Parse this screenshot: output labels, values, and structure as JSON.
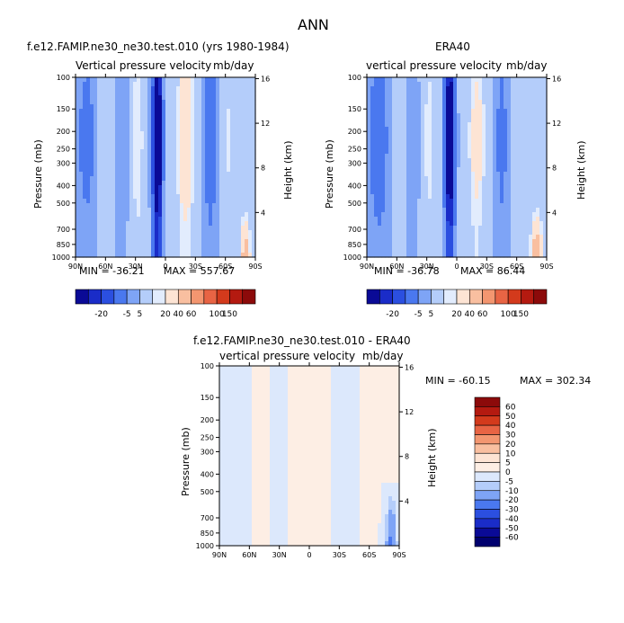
{
  "figure": {
    "title": "ANN"
  },
  "panels": {
    "model": {
      "title": "f.e12.FAMIP.ne30_ne30.test.010 (yrs 1980-1984)",
      "subtitle_left": "Vertical pressure velocity",
      "subtitle_right": "mb/day",
      "min_text": "MIN = -36.21",
      "max_text": "MAX = 557.67"
    },
    "obs": {
      "title": "ERA40",
      "subtitle_left": "vertical pressure velocity",
      "subtitle_right": "mb/day",
      "min_text": "MIN = -36.78",
      "max_text": "MAX = 86.44"
    },
    "diff": {
      "title": "f.e12.FAMIP.ne30_ne30.test.010 - ERA40",
      "subtitle_left": "vertical pressure velocity",
      "subtitle_right": "mb/day",
      "min_text": "MIN = -60.15",
      "max_text": "MAX = 302.34"
    }
  },
  "axes": {
    "ylabel": "Pressure (mb)",
    "ylabel_right": "Height (km)",
    "pressure_ticks": [
      "100",
      "150",
      "200",
      "250",
      "300",
      "400",
      "500",
      "700",
      "850",
      "1000"
    ],
    "height_ticks": [
      "16",
      "12",
      "8",
      "4"
    ],
    "lat_ticks": [
      "90N",
      "60N",
      "30N",
      "0",
      "30S",
      "60S",
      "90S"
    ]
  },
  "colorbars": {
    "main_labels": [
      "-20",
      "-5",
      "5",
      "20",
      "40",
      "60",
      "100",
      "150"
    ],
    "main_colors": [
      "#0a0a96",
      "#1a2cc8",
      "#2b4fe0",
      "#4a78ef",
      "#7ea4f6",
      "#b4cdfa",
      "#e2ecfd",
      "#fde4d4",
      "#f9bfa0",
      "#f39670",
      "#e86444",
      "#d33a1c",
      "#b41a10",
      "#8c0a0a"
    ],
    "diff_labels": [
      "60",
      "50",
      "40",
      "30",
      "20",
      "10",
      "5",
      "0",
      "-5",
      "-10",
      "-20",
      "-30",
      "-40",
      "-50",
      "-60"
    ],
    "diff_colors": [
      "#8c0a0a",
      "#b41a10",
      "#d33a1c",
      "#e86444",
      "#f39670",
      "#f9bfa0",
      "#fde4d4",
      "#fdeee4",
      "#dce8fc",
      "#b4cdfa",
      "#7ea4f6",
      "#4a78ef",
      "#2b4fe0",
      "#1a2cc8",
      "#0a0a96",
      "#00006e"
    ]
  },
  "chart_data": [
    {
      "type": "heatmap",
      "title": "f.e12.FAMIP.ne30_ne30.test.010 (yrs 1980-1984)",
      "subtitle": "Vertical pressure velocity (mb/day)",
      "xlabel": "",
      "ylabel": "Pressure (mb)",
      "ylabel_right": "Height (km)",
      "x_ticks": [
        "90N",
        "60N",
        "30N",
        "0",
        "30S",
        "60S",
        "90S"
      ],
      "y_ticks": [
        100,
        150,
        200,
        250,
        300,
        400,
        500,
        700,
        850,
        1000
      ],
      "y_scale": "log",
      "y_inverted": true,
      "min": -36.21,
      "max": 557.67,
      "contour_levels": [
        -20,
        -5,
        5,
        20,
        40,
        60,
        100,
        150
      ],
      "fields": [
        {
          "lat": 79,
          "width": 12,
          "value": -8
        },
        {
          "lat": 58,
          "width": 8,
          "value": 6
        },
        {
          "lat": 45,
          "width": 10,
          "value": -6
        },
        {
          "lat": 28,
          "width": 7,
          "value": 14
        },
        {
          "lat": 8,
          "width": 5,
          "value": -32
        },
        {
          "lat": -20,
          "width": 9,
          "value": 22
        },
        {
          "lat": -45,
          "width": 8,
          "value": -10
        },
        {
          "lat": -62,
          "width": 6,
          "value": 10
        },
        {
          "lat": -80,
          "width": 5,
          "value": 35,
          "lower_only": true
        }
      ]
    },
    {
      "type": "heatmap",
      "title": "ERA40",
      "subtitle": "vertical pressure velocity (mb/day)",
      "xlabel": "",
      "ylabel": "Pressure (mb)",
      "ylabel_right": "Height (km)",
      "x_ticks": [
        "90N",
        "60N",
        "30N",
        "0",
        "30S",
        "60S",
        "90S"
      ],
      "y_ticks": [
        100,
        150,
        200,
        250,
        300,
        400,
        500,
        700,
        850,
        1000
      ],
      "y_scale": "log",
      "y_inverted": true,
      "min": -36.78,
      "max": 86.44,
      "contour_levels": [
        -20,
        -5,
        5,
        20,
        40,
        60,
        100,
        150
      ],
      "fields": [
        {
          "lat": 78,
          "width": 12,
          "value": -10
        },
        {
          "lat": 58,
          "width": 8,
          "value": 5
        },
        {
          "lat": 45,
          "width": 10,
          "value": -5
        },
        {
          "lat": 28,
          "width": 7,
          "value": 12
        },
        {
          "lat": 7,
          "width": 5,
          "value": -30
        },
        {
          "lat": -20,
          "width": 9,
          "value": 18
        },
        {
          "lat": -45,
          "width": 8,
          "value": -8
        },
        {
          "lat": -62,
          "width": 6,
          "value": 8
        },
        {
          "lat": -80,
          "width": 6,
          "value": 40,
          "lower_only": true
        }
      ]
    },
    {
      "type": "heatmap",
      "title": "f.e12.FAMIP.ne30_ne30.test.010 - ERA40",
      "subtitle": "vertical pressure velocity (mb/day)",
      "xlabel": "",
      "ylabel": "Pressure (mb)",
      "ylabel_right": "Height (km)",
      "x_ticks": [
        "90N",
        "60N",
        "30N",
        "0",
        "30S",
        "60S",
        "90S"
      ],
      "y_ticks": [
        100,
        150,
        200,
        250,
        300,
        400,
        500,
        700,
        850,
        1000
      ],
      "y_scale": "log",
      "y_inverted": true,
      "min": -60.15,
      "max": 302.34,
      "contour_levels": [
        -60,
        -50,
        -40,
        -30,
        -20,
        -10,
        -5,
        0,
        5,
        10,
        20,
        30,
        40,
        50,
        60
      ],
      "fields": [
        {
          "lat": 75,
          "width": 10,
          "value": -3
        },
        {
          "lat": 48,
          "width": 8,
          "value": 2
        },
        {
          "lat": 30,
          "width": 6,
          "value": -3
        },
        {
          "lat": 12,
          "width": 6,
          "value": 3
        },
        {
          "lat": -10,
          "width": 8,
          "value": 2
        },
        {
          "lat": -35,
          "width": 8,
          "value": -3
        },
        {
          "lat": -60,
          "width": 6,
          "value": 2
        },
        {
          "lat": -82,
          "width": 5,
          "value": -25,
          "lower_only": true
        }
      ]
    }
  ]
}
